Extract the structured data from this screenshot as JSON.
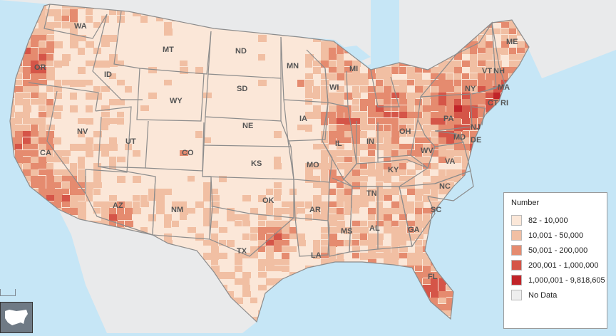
{
  "legend": {
    "title": "Number",
    "items": [
      {
        "label": "82 - 10,000",
        "color": "#fbe7d8"
      },
      {
        "label": "10,001 - 50,000",
        "color": "#f1bfa3"
      },
      {
        "label": "50,001 - 200,000",
        "color": "#e58b6f"
      },
      {
        "label": "200,001 - 1,000,000",
        "color": "#d55548"
      },
      {
        "label": "1,000,001 - 9,818,605",
        "color": "#c12429"
      },
      {
        "label": "No Data",
        "color": "#eeeeee"
      }
    ]
  },
  "states": [
    "WA",
    "OR",
    "CA",
    "NV",
    "ID",
    "MT",
    "WY",
    "UT",
    "AZ",
    "CO",
    "NM",
    "ND",
    "SD",
    "NE",
    "KS",
    "OK",
    "TX",
    "MN",
    "IA",
    "MO",
    "AR",
    "LA",
    "WI",
    "IL",
    "MS",
    "MI",
    "IN",
    "KY",
    "TN",
    "AL",
    "OH",
    "GA",
    "WV",
    "VA",
    "NC",
    "SC",
    "FL",
    "PA",
    "NY",
    "VT",
    "NH",
    "ME",
    "MA",
    "CT",
    "RI",
    "NJ",
    "DE",
    "MD"
  ],
  "map": {
    "ocean_color": "#c6e6f6",
    "land_color": "#e9eaeb",
    "state_border_color": "#8c8c8c"
  },
  "nav": {
    "button_icon": "usa-outline-icon"
  }
}
